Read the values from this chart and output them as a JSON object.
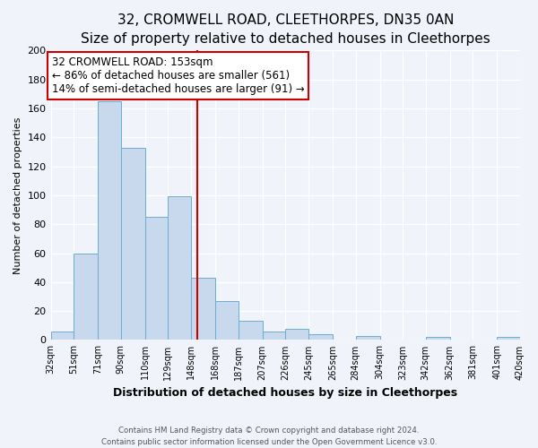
{
  "title": "32, CROMWELL ROAD, CLEETHORPES, DN35 0AN",
  "subtitle": "Size of property relative to detached houses in Cleethorpes",
  "xlabel": "Distribution of detached houses by size in Cleethorpes",
  "ylabel": "Number of detached properties",
  "bin_edges": [
    32,
    51,
    71,
    90,
    110,
    129,
    148,
    168,
    187,
    207,
    226,
    245,
    265,
    284,
    304,
    323,
    342,
    362,
    381,
    401,
    420
  ],
  "bar_heights": [
    6,
    60,
    165,
    133,
    85,
    99,
    43,
    27,
    13,
    6,
    8,
    4,
    0,
    3,
    0,
    0,
    2,
    0,
    0,
    2
  ],
  "bar_color": "#c8d9ee",
  "bar_edgecolor": "#6aadd5",
  "property_line_x": 153,
  "property_line_color": "#cc0000",
  "annotation_text": "32 CROMWELL ROAD: 153sqm\n← 86% of detached houses are smaller (561)\n14% of semi-detached houses are larger (91) →",
  "annotation_box_edgecolor": "#cc0000",
  "ylim": [
    0,
    200
  ],
  "yticks": [
    0,
    20,
    40,
    60,
    80,
    100,
    120,
    140,
    160,
    180,
    200
  ],
  "footer_line1": "Contains HM Land Registry data © Crown copyright and database right 2024.",
  "footer_line2": "Contains public sector information licensed under the Open Government Licence v3.0.",
  "background_color": "#f0f4fa",
  "plot_background_color": "#f0f4fa",
  "title_fontsize": 11,
  "subtitle_fontsize": 9.5,
  "ylabel_fontsize": 8,
  "xlabel_fontsize": 9,
  "annot_fontsize": 8.5,
  "ytick_fontsize": 8,
  "xtick_fontsize": 7
}
